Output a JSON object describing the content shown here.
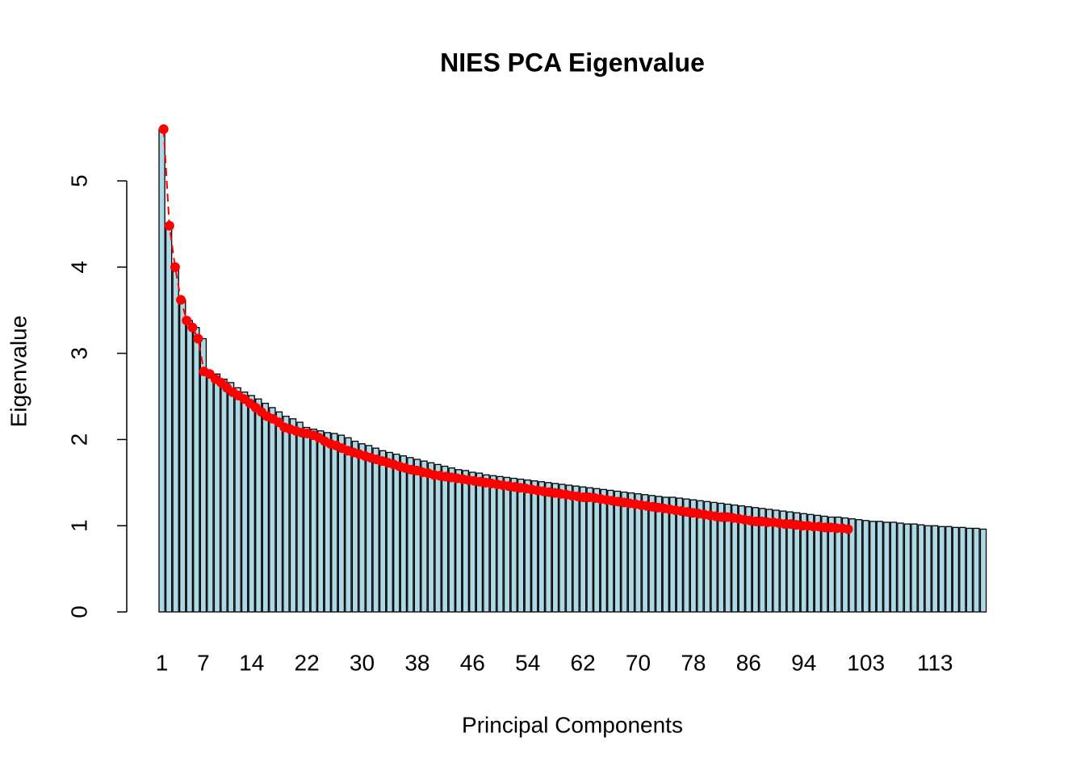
{
  "chart_data": {
    "type": "bar",
    "title": "NIES PCA Eigenvalue",
    "x_label": "Principal Components",
    "y_label": "Eigenvalue",
    "categories": [
      "1",
      null,
      null,
      null,
      null,
      null,
      "7",
      null,
      null,
      null,
      null,
      null,
      null,
      "14",
      null,
      null,
      null,
      null,
      null,
      null,
      null,
      "22",
      null,
      null,
      null,
      null,
      null,
      null,
      null,
      "30",
      null,
      null,
      null,
      null,
      null,
      null,
      null,
      "38",
      null,
      null,
      null,
      null,
      null,
      null,
      null,
      "46",
      null,
      null,
      null,
      null,
      null,
      null,
      null,
      "54",
      null,
      null,
      null,
      null,
      null,
      null,
      null,
      "62",
      null,
      null,
      null,
      null,
      null,
      null,
      null,
      "70",
      null,
      null,
      null,
      null,
      null,
      null,
      null,
      "78",
      null,
      null,
      null,
      null,
      null,
      null,
      null,
      "86",
      null,
      null,
      null,
      null,
      null,
      null,
      null,
      "94",
      null,
      null,
      null,
      null,
      null,
      null,
      null,
      null,
      "103",
      null,
      null,
      null,
      null,
      null,
      null,
      null,
      null,
      null,
      "113",
      null,
      null,
      null,
      null,
      null,
      null,
      null
    ],
    "series": [
      {
        "type": "bar",
        "color": "#add8e6",
        "values": [
          5.6,
          4.48,
          4.0,
          3.62,
          3.38,
          3.3,
          3.17,
          2.79,
          2.76,
          2.7,
          2.66,
          2.6,
          2.55,
          2.51,
          2.47,
          2.42,
          2.37,
          2.32,
          2.27,
          2.24,
          2.2,
          2.14,
          2.12,
          2.1,
          2.08,
          2.07,
          2.05,
          2.02,
          1.98,
          1.95,
          1.93,
          1.9,
          1.87,
          1.85,
          1.83,
          1.81,
          1.79,
          1.77,
          1.75,
          1.73,
          1.71,
          1.69,
          1.67,
          1.65,
          1.64,
          1.62,
          1.61,
          1.59,
          1.58,
          1.57,
          1.56,
          1.55,
          1.54,
          1.53,
          1.52,
          1.51,
          1.5,
          1.49,
          1.48,
          1.47,
          1.46,
          1.45,
          1.44,
          1.43,
          1.42,
          1.41,
          1.4,
          1.39,
          1.38,
          1.37,
          1.36,
          1.35,
          1.34,
          1.33,
          1.33,
          1.32,
          1.31,
          1.3,
          1.29,
          1.28,
          1.27,
          1.26,
          1.25,
          1.24,
          1.23,
          1.22,
          1.21,
          1.2,
          1.19,
          1.18,
          1.17,
          1.16,
          1.15,
          1.14,
          1.13,
          1.12,
          1.11,
          1.1,
          1.1,
          1.09,
          1.08,
          1.07,
          1.06,
          1.05,
          1.05,
          1.04,
          1.04,
          1.03,
          1.02,
          1.02,
          1.01,
          1.0,
          1.0,
          0.99,
          0.99,
          0.98,
          0.98,
          0.97,
          0.97,
          0.96
        ]
      },
      {
        "type": "line",
        "color": "#ff0000",
        "values": [
          5.6,
          4.48,
          4.0,
          3.62,
          3.38,
          3.3,
          3.17,
          2.79,
          2.76,
          2.7,
          2.66,
          2.6,
          2.55,
          2.51,
          2.47,
          2.42,
          2.37,
          2.32,
          2.27,
          2.24,
          2.2,
          2.14,
          2.12,
          2.1,
          2.08,
          2.07,
          2.05,
          2.02,
          1.98,
          1.95,
          1.93,
          1.9,
          1.87,
          1.85,
          1.83,
          1.81,
          1.79,
          1.77,
          1.75,
          1.73,
          1.71,
          1.69,
          1.67,
          1.65,
          1.64,
          1.62,
          1.61,
          1.59,
          1.58,
          1.57,
          1.56,
          1.55,
          1.54,
          1.53,
          1.52,
          1.51,
          1.5,
          1.49,
          1.48,
          1.47,
          1.46,
          1.45,
          1.44,
          1.43,
          1.42,
          1.41,
          1.4,
          1.39,
          1.38,
          1.37,
          1.36,
          1.35,
          1.34,
          1.33,
          1.33,
          1.32,
          1.31,
          1.3,
          1.29,
          1.28,
          1.27,
          1.26,
          1.25,
          1.24,
          1.23,
          1.22,
          1.21,
          1.2,
          1.19,
          1.18,
          1.17,
          1.16,
          1.15,
          1.14,
          1.13,
          1.12,
          1.11,
          1.1,
          1.1,
          1.09,
          1.08,
          1.07,
          1.06,
          1.05,
          1.05,
          1.04,
          1.04,
          1.03,
          1.02,
          1.02,
          1.01,
          1.0,
          1.0,
          0.99,
          0.99,
          0.98,
          0.98,
          0.97,
          0.97,
          0.96
        ]
      }
    ],
    "ylim": [
      0,
      5.6
    ],
    "yticks": [
      0,
      1,
      2,
      3,
      4,
      5
    ]
  }
}
